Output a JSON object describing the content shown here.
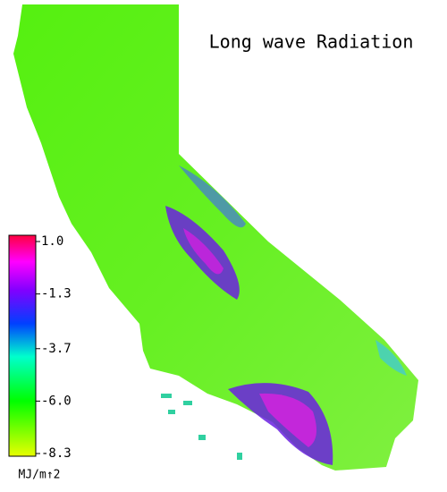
{
  "title": "Long wave Radiation",
  "colorbar": {
    "range": [
      -8.3,
      1.0
    ],
    "ticks": [
      {
        "value": 1.0,
        "label": "1.0"
      },
      -1.3,
      -3.7,
      {
        "value": -6.0,
        "label": "-6.0"
      },
      -8.3
    ],
    "unit": "MJ/m↑2"
  }
}
